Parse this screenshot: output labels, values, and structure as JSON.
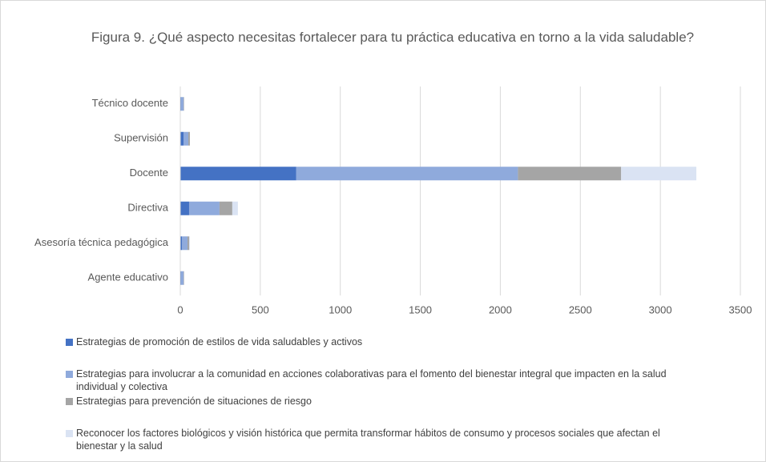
{
  "chart_data": {
    "type": "stacked-bar-horizontal",
    "title": "Figura 9. ¿Qué aspecto necesitas fortalecer para tu práctica educativa en torno a la vida saludable?",
    "categories": [
      "Técnico docente",
      "Supervisión",
      "Docente",
      "Directiva",
      "Asesoría técnica pedagógica",
      "Agente educativo"
    ],
    "series": [
      {
        "name": "Estrategias de promoción de estilos de vida saludables y activos",
        "color": "#4472c4",
        "values": [
          5,
          20,
          725,
          55,
          10,
          5
        ]
      },
      {
        "name": "Estrategias para involucrar a la comunidad en acciones colaborativas para el fomento del bienestar integral que impacten en la salud individual y colectiva",
        "color": "#8faadc",
        "values": [
          15,
          30,
          1385,
          190,
          35,
          15
        ]
      },
      {
        "name": "Estrategias para prevención de situaciones de riesgo",
        "color": "#a5a5a5",
        "values": [
          3,
          10,
          645,
          80,
          10,
          3
        ]
      },
      {
        "name": "Reconocer los factores biológicos y visión histórica que permita transformar hábitos de consumo y procesos sociales que afectan el bienestar y la salud",
        "color": "#dae3f3",
        "values": [
          2,
          0,
          470,
          35,
          5,
          2
        ]
      }
    ],
    "xlim": [
      0,
      3500
    ],
    "xticks": [
      0,
      500,
      1000,
      1500,
      2000,
      2500,
      3000,
      3500
    ],
    "grid": true
  }
}
